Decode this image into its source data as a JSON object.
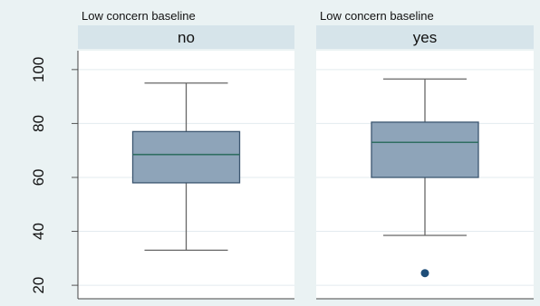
{
  "chart_data": {
    "type": "boxplot",
    "ylim": [
      15,
      107
    ],
    "yticks": [
      20,
      40,
      60,
      80,
      100
    ],
    "grid": true,
    "colors": {
      "background": "#eaf2f3",
      "panel": "#ffffff",
      "strip": "#d6e4ea",
      "box_fill": "#8ea4b9",
      "box_stroke": "#3c5670",
      "median": "#2f6e61",
      "whisker": "#666666",
      "outlier": "#1f4e79",
      "grid": "#e3ebef"
    },
    "panels": [
      {
        "title": "Low concern baseline",
        "strip_label": "no",
        "box": {
          "whisker_low": 33,
          "q1": 58,
          "median": 68.5,
          "q3": 77,
          "whisker_high": 95
        },
        "outliers": []
      },
      {
        "title": "Low concern baseline",
        "strip_label": "yes",
        "box": {
          "whisker_low": 38.5,
          "q1": 60,
          "median": 73,
          "q3": 80.5,
          "whisker_high": 96.5
        },
        "outliers": [
          24.5
        ]
      }
    ]
  }
}
